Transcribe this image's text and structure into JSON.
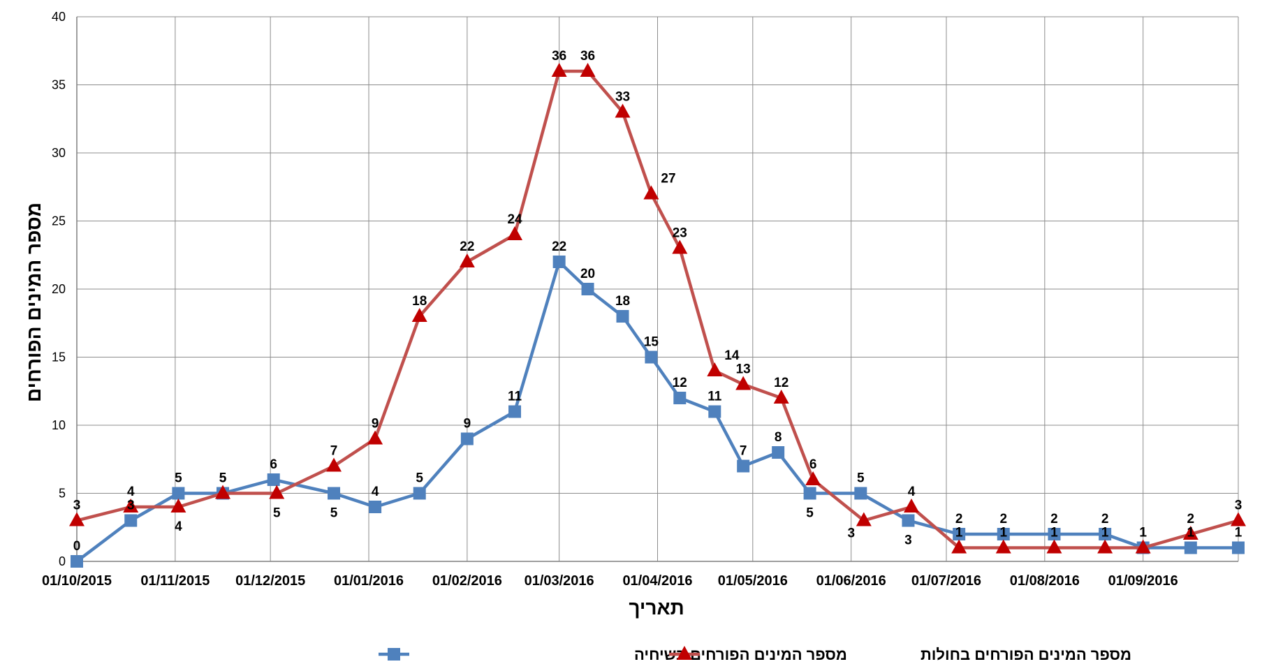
{
  "chart_data": {
    "type": "line",
    "title": "",
    "xlabel": "תאריך",
    "ylabel": "מספר המינים הפורחים",
    "ylim": [
      0,
      40
    ],
    "yticks": [
      0,
      5,
      10,
      15,
      20,
      25,
      30,
      35,
      40
    ],
    "xticks": [
      "01/10/2015",
      "01/11/2015",
      "01/12/2015",
      "01/01/2016",
      "01/02/2016",
      "01/03/2016",
      "01/04/2016",
      "01/05/2016",
      "01/06/2016",
      "01/07/2016",
      "01/08/2016",
      "01/09/2016"
    ],
    "xlim": [
      "2015-10-01",
      "2016-10-01"
    ],
    "grid": true,
    "legend_position": "bottom",
    "series": [
      {
        "name": "מספר המינים הפורחים בשיחיה",
        "color": "#4F81BD",
        "marker": "square",
        "points": [
          {
            "x": "2015-10-01",
            "y": 0,
            "label_pos": "above"
          },
          {
            "x": "2015-10-18",
            "y": 3,
            "label_pos": "above"
          },
          {
            "x": "2015-11-02",
            "y": 5,
            "label_pos": "above"
          },
          {
            "x": "2015-11-16",
            "y": 5,
            "label_pos": "above"
          },
          {
            "x": "2015-12-02",
            "y": 6,
            "label_pos": "above"
          },
          {
            "x": "2015-12-21",
            "y": 5,
            "label_pos": "below"
          },
          {
            "x": "2016-01-03",
            "y": 4,
            "label_pos": "above"
          },
          {
            "x": "2016-01-17",
            "y": 5,
            "label_pos": "above"
          },
          {
            "x": "2016-02-01",
            "y": 9,
            "label_pos": "above"
          },
          {
            "x": "2016-02-16",
            "y": 11,
            "label_pos": "above"
          },
          {
            "x": "2016-03-01",
            "y": 22,
            "label_pos": "above"
          },
          {
            "x": "2016-03-10",
            "y": 20,
            "label_pos": "above"
          },
          {
            "x": "2016-03-21",
            "y": 18,
            "label_pos": "above"
          },
          {
            "x": "2016-03-30",
            "y": 15,
            "label_pos": "above"
          },
          {
            "x": "2016-04-08",
            "y": 12,
            "label_pos": "above"
          },
          {
            "x": "2016-04-19",
            "y": 11,
            "label_pos": "above"
          },
          {
            "x": "2016-04-28",
            "y": 7,
            "label_pos": "above"
          },
          {
            "x": "2016-05-09",
            "y": 8,
            "label_pos": "above"
          },
          {
            "x": "2016-05-19",
            "y": 5,
            "label_pos": "below"
          },
          {
            "x": "2016-06-04",
            "y": 5,
            "label_pos": "above"
          },
          {
            "x": "2016-06-19",
            "y": 3,
            "label_pos": "below"
          },
          {
            "x": "2016-07-05",
            "y": 2,
            "label_pos": "above"
          },
          {
            "x": "2016-07-19",
            "y": 2,
            "label_pos": "above"
          },
          {
            "x": "2016-08-04",
            "y": 2,
            "label_pos": "above"
          },
          {
            "x": "2016-08-20",
            "y": 2,
            "label_pos": "above"
          },
          {
            "x": "2016-09-01",
            "y": 1,
            "label_pos": "above"
          },
          {
            "x": "2016-09-16",
            "y": 1,
            "label_pos": "above"
          },
          {
            "x": "2016-10-01",
            "y": 1,
            "label_pos": "above"
          }
        ]
      },
      {
        "name": "מספר המינים הפורחים בחולות",
        "color": "#C0504D",
        "marker": "triangle",
        "points": [
          {
            "x": "2015-10-01",
            "y": 3,
            "label_pos": "above"
          },
          {
            "x": "2015-10-18",
            "y": 4,
            "label_pos": "above"
          },
          {
            "x": "2015-11-02",
            "y": 4,
            "label_pos": "below"
          },
          {
            "x": "2015-11-16",
            "y": 5,
            "label_pos": "above"
          },
          {
            "x": "2015-12-03",
            "y": 5,
            "label_pos": "below"
          },
          {
            "x": "2015-12-21",
            "y": 7,
            "label_pos": "above"
          },
          {
            "x": "2016-01-03",
            "y": 9,
            "label_pos": "above"
          },
          {
            "x": "2016-01-17",
            "y": 18,
            "label_pos": "above"
          },
          {
            "x": "2016-02-01",
            "y": 22,
            "label_pos": "above"
          },
          {
            "x": "2016-02-16",
            "y": 24,
            "label_pos": "above"
          },
          {
            "x": "2016-03-01",
            "y": 36,
            "label_pos": "above"
          },
          {
            "x": "2016-03-10",
            "y": 36,
            "label_pos": "above"
          },
          {
            "x": "2016-03-21",
            "y": 33,
            "label_pos": "above"
          },
          {
            "x": "2016-03-30",
            "y": 27,
            "label_pos": "right"
          },
          {
            "x": "2016-04-08",
            "y": 23,
            "label_pos": "above"
          },
          {
            "x": "2016-04-19",
            "y": 14,
            "label_pos": "right"
          },
          {
            "x": "2016-04-28",
            "y": 13,
            "label_pos": "above"
          },
          {
            "x": "2016-05-10",
            "y": 12,
            "label_pos": "above"
          },
          {
            "x": "2016-05-20",
            "y": 6,
            "label_pos": "above"
          },
          {
            "x": "2016-06-05",
            "y": 3,
            "label_pos": "belowleft"
          },
          {
            "x": "2016-06-20",
            "y": 4,
            "label_pos": "above"
          },
          {
            "x": "2016-07-05",
            "y": 1,
            "label_pos": "above"
          },
          {
            "x": "2016-07-19",
            "y": 1,
            "label_pos": "above"
          },
          {
            "x": "2016-08-04",
            "y": 1,
            "label_pos": "above"
          },
          {
            "x": "2016-08-20",
            "y": 1,
            "label_pos": "above"
          },
          {
            "x": "2016-09-01",
            "y": 1,
            "label_pos": "above"
          },
          {
            "x": "2016-09-16",
            "y": 2,
            "label_pos": "above"
          },
          {
            "x": "2016-10-01",
            "y": 3,
            "label_pos": "above"
          }
        ]
      }
    ]
  }
}
